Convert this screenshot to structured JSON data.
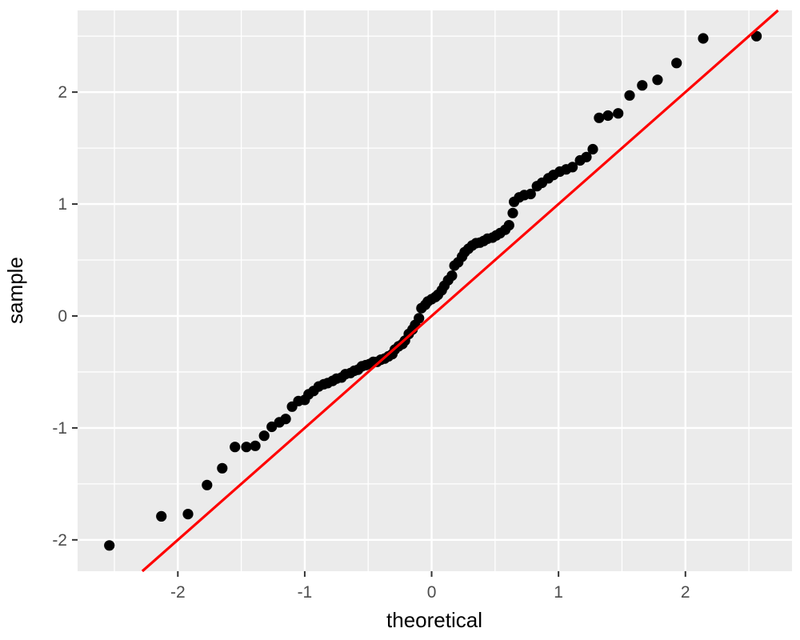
{
  "chart_data": {
    "type": "scatter",
    "title": "",
    "xlabel": "theoretical",
    "ylabel": "sample",
    "xlim": [
      -2.79,
      2.84
    ],
    "ylim": [
      -2.28,
      2.73
    ],
    "x_ticks": [
      -2,
      -1,
      0,
      1,
      2
    ],
    "y_ticks": [
      -2,
      -1,
      0,
      1,
      2
    ],
    "x_minor_ticks": [
      -2.5,
      -1.5,
      -0.5,
      0.5,
      1.5,
      2.5
    ],
    "y_minor_ticks": [
      -2.5,
      -1.5,
      -0.5,
      0.5,
      1.5,
      2.5
    ],
    "grid": "major+minor",
    "legend_position": "none",
    "colors": {
      "panel_background": "#EBEBEB",
      "grid": "#FFFFFF",
      "points": "#000000",
      "reference_line": "#FF0000",
      "tick_text": "#4D4D4D",
      "axis_title_text": "#000000",
      "tick_mark": "#333333"
    },
    "reference_line": {
      "name": "qq-identity-line",
      "equation": "y = x",
      "intercept": 0,
      "slope": 1,
      "width": 3.2
    },
    "point_radius": 6.6,
    "points": [
      [
        -2.54,
        -2.05
      ],
      [
        -2.13,
        -1.79
      ],
      [
        -1.92,
        -1.77
      ],
      [
        -1.77,
        -1.51
      ],
      [
        -1.65,
        -1.36
      ],
      [
        -1.55,
        -1.17
      ],
      [
        -1.46,
        -1.17
      ],
      [
        -1.39,
        -1.16
      ],
      [
        -1.32,
        -1.07
      ],
      [
        -1.26,
        -0.99
      ],
      [
        -1.2,
        -0.95
      ],
      [
        -1.15,
        -0.92
      ],
      [
        -1.1,
        -0.81
      ],
      [
        -1.05,
        -0.76
      ],
      [
        -1.0,
        -0.75
      ],
      [
        -0.97,
        -0.7
      ],
      [
        -0.93,
        -0.67
      ],
      [
        -0.89,
        -0.63
      ],
      [
        -0.85,
        -0.61
      ],
      [
        -0.82,
        -0.6
      ],
      [
        -0.78,
        -0.58
      ],
      [
        -0.75,
        -0.56
      ],
      [
        -0.71,
        -0.55
      ],
      [
        -0.68,
        -0.52
      ],
      [
        -0.64,
        -0.51
      ],
      [
        -0.61,
        -0.49
      ],
      [
        -0.58,
        -0.48
      ],
      [
        -0.55,
        -0.45
      ],
      [
        -0.52,
        -0.44
      ],
      [
        -0.49,
        -0.43
      ],
      [
        -0.46,
        -0.41
      ],
      [
        -0.43,
        -0.41
      ],
      [
        -0.4,
        -0.39
      ],
      [
        -0.37,
        -0.38
      ],
      [
        -0.34,
        -0.36
      ],
      [
        -0.31,
        -0.34
      ],
      [
        -0.29,
        -0.3
      ],
      [
        -0.26,
        -0.27
      ],
      [
        -0.23,
        -0.25
      ],
      [
        -0.21,
        -0.22
      ],
      [
        -0.18,
        -0.16
      ],
      [
        -0.15,
        -0.12
      ],
      [
        -0.13,
        -0.08
      ],
      [
        -0.1,
        -0.02
      ],
      [
        -0.08,
        0.07
      ],
      [
        -0.05,
        0.1
      ],
      [
        -0.03,
        0.13
      ],
      [
        0.0,
        0.15
      ],
      [
        0.03,
        0.17
      ],
      [
        0.05,
        0.19
      ],
      [
        0.08,
        0.23
      ],
      [
        0.1,
        0.27
      ],
      [
        0.13,
        0.32
      ],
      [
        0.16,
        0.36
      ],
      [
        0.18,
        0.45
      ],
      [
        0.21,
        0.48
      ],
      [
        0.24,
        0.53
      ],
      [
        0.26,
        0.57
      ],
      [
        0.29,
        0.6
      ],
      [
        0.32,
        0.63
      ],
      [
        0.35,
        0.65
      ],
      [
        0.38,
        0.655
      ],
      [
        0.41,
        0.67
      ],
      [
        0.44,
        0.69
      ],
      [
        0.48,
        0.7
      ],
      [
        0.51,
        0.72
      ],
      [
        0.54,
        0.74
      ],
      [
        0.58,
        0.77
      ],
      [
        0.61,
        0.81
      ],
      [
        0.64,
        0.92
      ],
      [
        0.65,
        1.02
      ],
      [
        0.69,
        1.06
      ],
      [
        0.73,
        1.08
      ],
      [
        0.78,
        1.09
      ],
      [
        0.83,
        1.16
      ],
      [
        0.87,
        1.19
      ],
      [
        0.92,
        1.23
      ],
      [
        0.96,
        1.26
      ],
      [
        1.01,
        1.29
      ],
      [
        1.06,
        1.31
      ],
      [
        1.11,
        1.33
      ],
      [
        1.17,
        1.39
      ],
      [
        1.22,
        1.42
      ],
      [
        1.27,
        1.49
      ],
      [
        1.32,
        1.77
      ],
      [
        1.39,
        1.79
      ],
      [
        1.47,
        1.81
      ],
      [
        1.56,
        1.97
      ],
      [
        1.66,
        2.06
      ],
      [
        1.78,
        2.11
      ],
      [
        1.93,
        2.26
      ],
      [
        2.14,
        2.48
      ],
      [
        2.56,
        2.5
      ]
    ]
  }
}
